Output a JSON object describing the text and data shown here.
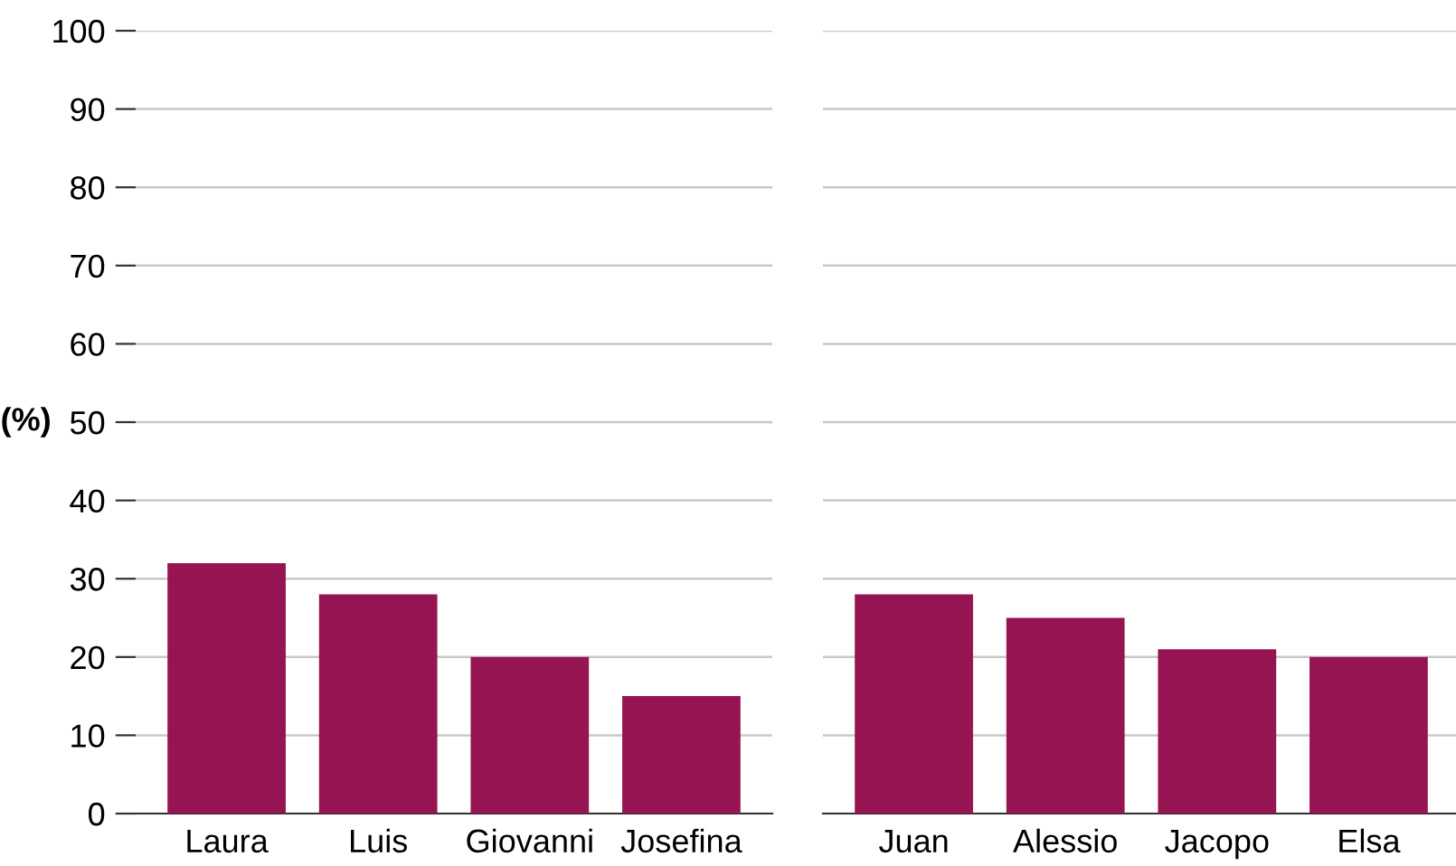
{
  "chart_data": [
    {
      "type": "bar",
      "ylabel": "(%)",
      "categories": [
        "Laura",
        "Luis",
        "Giovanni",
        "Josefina"
      ],
      "values": [
        32,
        28,
        20,
        15
      ],
      "color": "#961452",
      "ylim": [
        0,
        100
      ],
      "yticks": [
        0,
        10,
        20,
        30,
        40,
        50,
        60,
        70,
        80,
        90,
        100
      ],
      "grid": "y"
    },
    {
      "type": "bar",
      "categories": [
        "Juan",
        "Alessio",
        "Jacopo",
        "Elsa"
      ],
      "values": [
        28,
        25,
        21,
        20
      ],
      "color": "#961452",
      "ylim": [
        0,
        100
      ],
      "yticks": [
        0,
        10,
        20,
        30,
        40,
        50,
        60,
        70,
        80,
        90,
        100
      ],
      "grid": "y",
      "tick_labels": "x"
    }
  ]
}
